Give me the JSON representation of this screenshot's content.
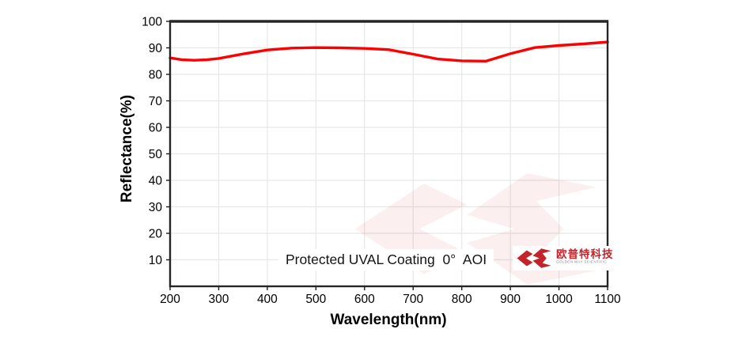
{
  "chart_data": {
    "type": "line",
    "title": "Protected UVAL Coating  0°  AOI",
    "xlabel": "Wavelength(nm)",
    "ylabel": "Reflectance(%)",
    "xlim": [
      200,
      1100
    ],
    "ylim": [
      0,
      100
    ],
    "x_ticks": [
      200,
      300,
      400,
      500,
      600,
      700,
      800,
      900,
      1000,
      1100
    ],
    "y_ticks": [
      10,
      20,
      30,
      40,
      50,
      60,
      70,
      80,
      90,
      100
    ],
    "grid": true,
    "legend": "none",
    "series": [
      {
        "name": "Reflectance",
        "color": "#ff0000",
        "x": [
          200,
          225,
          250,
          275,
          300,
          350,
          400,
          450,
          500,
          550,
          600,
          650,
          700,
          750,
          800,
          850,
          900,
          950,
          1000,
          1050,
          1100
        ],
        "y": [
          86.2,
          85.5,
          85.3,
          85.5,
          86.0,
          87.7,
          89.2,
          89.9,
          90.1,
          90.0,
          89.8,
          89.3,
          87.6,
          85.8,
          85.1,
          85.0,
          87.8,
          90.1,
          90.9,
          91.5,
          92.2
        ]
      }
    ]
  },
  "annotation": {
    "label": "Protected UVAL Coating  0°  AOI"
  },
  "brand": {
    "logo_cn": "欧普特科技",
    "logo_en": "GOLDEN WAY SCIENTIFIC",
    "logo_color": "#c5232b"
  },
  "colors": {
    "curve": "#ff0000",
    "grid": "#e7e7e7",
    "frame": "#262626",
    "tick_label": "#000000",
    "watermark": "#c5232b"
  }
}
